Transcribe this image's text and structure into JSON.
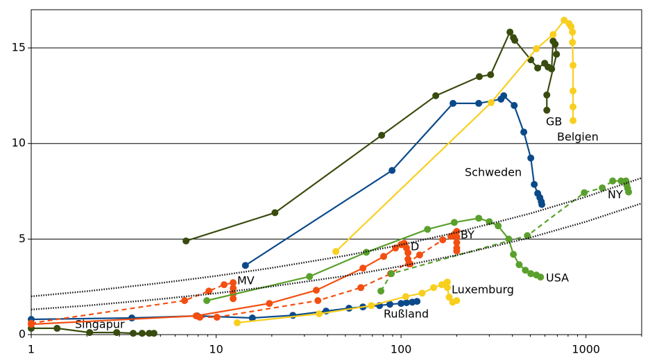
{
  "chart_data": {
    "type": "line",
    "xscale": "log",
    "grid": true,
    "xlim": [
      1,
      2000
    ],
    "ylim": [
      0,
      17
    ],
    "xticks": [
      1,
      10,
      100,
      1000
    ],
    "yticks": [
      0,
      5,
      10,
      15
    ],
    "series": [
      {
        "name": "GB",
        "color": "#394b0e",
        "style": "solid",
        "markers": true,
        "x": [
          6.87,
          20.8,
          78.5,
          154,
          265,
          305,
          388,
          405,
          412,
          503,
          548,
          598,
          624,
          652,
          664,
          681,
          693,
          614,
          614
        ],
        "values": [
          4.9,
          6.38,
          10.43,
          12.5,
          13.5,
          13.6,
          15.83,
          15.54,
          15.4,
          14.38,
          13.95,
          14.2,
          14.0,
          13.9,
          15.36,
          15.2,
          14.67,
          12.54,
          11.74
        ]
      },
      {
        "name": "Singapur",
        "color": "#394b0e",
        "style": "solid",
        "markers": true,
        "x": [
          1,
          1.38,
          2.07,
          2.9,
          3.56,
          3.98,
          4.35,
          4.61
        ],
        "values": [
          0.33,
          0.33,
          0.11,
          0.11,
          0.07,
          0.07,
          0.07,
          0.07
        ]
      },
      {
        "name": "Schweden",
        "color": "#0b4a8a",
        "style": "solid",
        "markers": true,
        "x": [
          14.4,
          89.4,
          191,
          263,
          347,
          359,
          409,
          461,
          503,
          525,
          548,
          563,
          573,
          577
        ],
        "values": [
          3.62,
          8.59,
          12.1,
          12.1,
          12.32,
          12.5,
          11.99,
          10.6,
          9.24,
          7.86,
          7.39,
          7.17,
          6.96,
          6.81
        ]
      },
      {
        "name": "Rußland",
        "color": "#0b4a8a",
        "style": "solid",
        "markers": true,
        "x": [
          1,
          3.5,
          7.89,
          15.7,
          26,
          39.3,
          52.3,
          62.2,
          76.5,
          87,
          100,
          107,
          115,
          122
        ],
        "values": [
          0.8,
          0.87,
          0.98,
          0.87,
          1.01,
          1.23,
          1.38,
          1.45,
          1.52,
          1.59,
          1.63,
          1.67,
          1.7,
          1.74
        ]
      },
      {
        "name": "Belgien",
        "color": "#f8cf1f",
        "style": "solid",
        "markers": true,
        "x": [
          44.4,
          307,
          539,
          664,
          762,
          810,
          830,
          845,
          845,
          851,
          851,
          851,
          851
        ],
        "values": [
          4.35,
          12.14,
          14.96,
          15.7,
          16.45,
          16.27,
          16.12,
          15.83,
          15.29,
          14.09,
          12.75,
          11.92,
          11.2
        ]
      },
      {
        "name": "Luxemburg",
        "color": "#f8cf1f",
        "style": "solid",
        "markers": true,
        "x": [
          13,
          36.1,
          69,
          106,
          130,
          150,
          166,
          175,
          178,
          178,
          182,
          190,
          200
        ],
        "values": [
          0.62,
          1.09,
          1.52,
          1.99,
          2.17,
          2.46,
          2.61,
          2.68,
          2.75,
          2.46,
          1.96,
          1.7,
          1.78
        ]
      },
      {
        "name": "D",
        "color": "#f24f11",
        "style": "solid",
        "markers": true,
        "x": [
          1,
          7.8,
          19.4,
          34.8,
          62.2,
          80.5,
          93.3,
          100,
          104,
          105,
          107,
          109,
          109,
          110,
          112
        ],
        "values": [
          0.54,
          0.98,
          1.63,
          2.32,
          3.48,
          4.09,
          4.53,
          4.71,
          4.78,
          4.67,
          4.53,
          4.28,
          3.95,
          3.7,
          3.7
        ]
      },
      {
        "name": "MV",
        "color": "#f24f11",
        "style": "dashed",
        "markers": true,
        "x": [
          1,
          6.75,
          9.14,
          11.04,
          12.36,
          12.36,
          12.36,
          12.36
        ],
        "values": [
          0.6,
          1.78,
          2.28,
          2.61,
          2.72,
          2.43,
          2.14,
          1.88
        ]
      },
      {
        "name": "BY",
        "color": "#f24f11",
        "style": "dashed",
        "markers": true,
        "x": [
          8.16,
          10.1,
          35.5,
          60.6,
          87.8,
          126,
          168,
          186,
          196,
          200,
          200,
          200,
          200,
          200
        ],
        "values": [
          0.91,
          0.91,
          1.78,
          2.46,
          3.19,
          4.17,
          4.96,
          5.14,
          5.29,
          5.4,
          5.11,
          4.82,
          4.53,
          4.38
        ]
      },
      {
        "name": "USA",
        "color": "#5aa02c",
        "style": "solid",
        "markers": true,
        "x": [
          8.9,
          32,
          64.9,
          139,
          194,
          263,
          300,
          335,
          382,
          405,
          435,
          470,
          503,
          539,
          568
        ],
        "values": [
          1.78,
          3.04,
          4.31,
          5.51,
          5.87,
          6.09,
          5.91,
          5.69,
          5.0,
          4.2,
          3.66,
          3.37,
          3.19,
          3.12,
          3.01
        ]
      },
      {
        "name": "NY",
        "color": "#5aa02c",
        "style": "dashed",
        "markers": true,
        "x": [
          77.8,
          88.6,
          482,
          979,
          1225,
          1394,
          1549,
          1644,
          1660,
          1680,
          1700
        ],
        "values": [
          2.28,
          3.19,
          5.18,
          7.43,
          7.68,
          8.04,
          8.04,
          8.04,
          7.83,
          7.65,
          7.46
        ]
      },
      {
        "color": "#111111",
        "style": "dotted",
        "markers": false,
        "x": [
          1,
          2,
          5,
          10,
          20,
          50,
          100,
          200,
          500,
          1000,
          2000
        ],
        "values": [
          2.0,
          2.27,
          2.7,
          3.07,
          3.49,
          4.13,
          4.7,
          5.35,
          6.34,
          7.21,
          8.2
        ]
      },
      {
        "color": "#111111",
        "style": "dotted",
        "markers": false,
        "x": [
          1,
          2,
          5,
          10,
          20,
          50,
          100,
          200,
          500,
          1000,
          2000
        ],
        "values": [
          1.31,
          1.52,
          1.86,
          2.16,
          2.52,
          3.07,
          3.58,
          4.16,
          5.08,
          5.91,
          6.87
        ]
      }
    ]
  }
}
